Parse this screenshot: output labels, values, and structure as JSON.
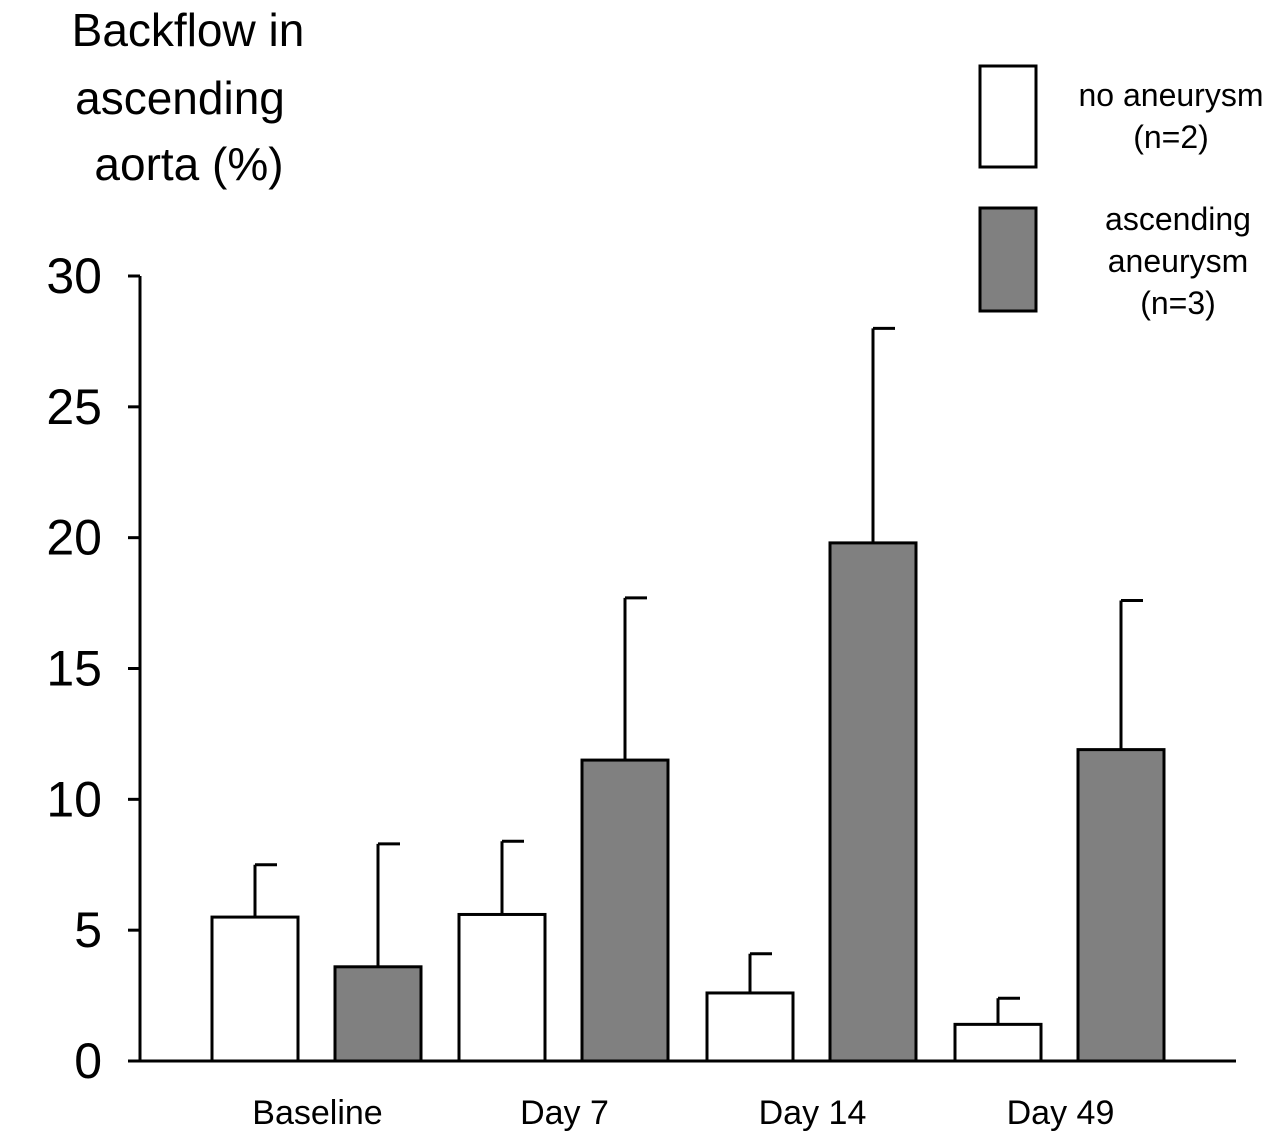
{
  "chart_data": {
    "type": "bar",
    "title": "",
    "ylabel_lines": [
      "Backflow in",
      "ascending",
      "aorta (%)"
    ],
    "xlabel": "",
    "categories": [
      "Baseline",
      "Day 7",
      "Day 14",
      "Day 49"
    ],
    "ylim": [
      0,
      30
    ],
    "yticks": [
      "0",
      "5",
      "10",
      "15",
      "20",
      "25",
      "30"
    ],
    "grid": false,
    "legend_position": "top-right",
    "series": [
      {
        "legend_lines": [
          "no aneurysm",
          "(n=2)"
        ],
        "color": "#ffffff",
        "values": [
          5.5,
          5.6,
          2.6,
          1.4
        ],
        "error": [
          2.0,
          2.8,
          1.5,
          1.0
        ]
      },
      {
        "legend_lines": [
          "ascending",
          "aneurysm",
          "(n=3)"
        ],
        "color": "#808080",
        "values": [
          3.6,
          11.5,
          19.8,
          11.9
        ],
        "error": [
          4.7,
          6.2,
          8.2,
          5.7
        ]
      }
    ]
  }
}
